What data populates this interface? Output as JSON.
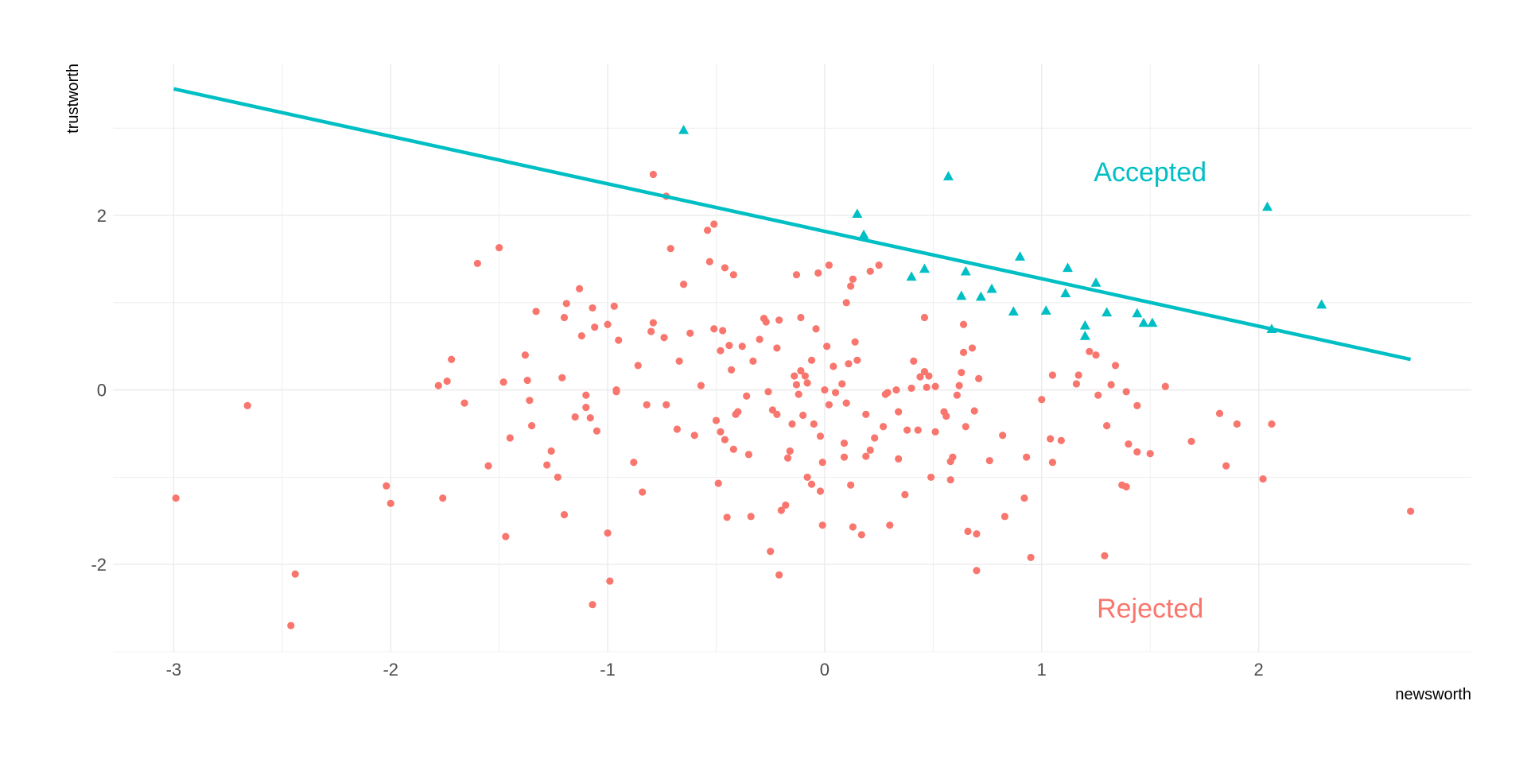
{
  "chart_data": {
    "type": "scatter",
    "title": "",
    "xlabel": "newsworth",
    "ylabel": "trustworth",
    "xlim": [
      -3.28,
      2.98
    ],
    "ylim": [
      -3.0,
      3.74
    ],
    "x_ticks": [
      "-3",
      "-2",
      "-1",
      "0",
      "1",
      "2"
    ],
    "x_tick_values": [
      -3,
      -2,
      -1,
      0,
      1,
      2
    ],
    "y_ticks": [
      "-2",
      "0",
      "2"
    ],
    "y_tick_values": [
      -2,
      0,
      2
    ],
    "grid": true,
    "legend": "none",
    "group_labels": {
      "accepted": {
        "text": "Accepted",
        "x": 1.5,
        "y": 2.5
      },
      "rejected": {
        "text": "Rejected",
        "x": 1.5,
        "y": -2.5
      }
    },
    "colors": {
      "accepted": "#00BFC4",
      "rejected": "#F8766D",
      "grid": "#ebebeb"
    },
    "threshold_line": {
      "x": [
        -3.0,
        2.7
      ],
      "y": [
        3.45,
        0.35
      ]
    },
    "accepted": {
      "shape": "triangle",
      "points": [
        [
          -0.65,
          2.98
        ],
        [
          0.15,
          2.02
        ],
        [
          0.18,
          1.78
        ],
        [
          0.57,
          2.45
        ],
        [
          0.4,
          1.3
        ],
        [
          0.46,
          1.39
        ],
        [
          0.63,
          1.08
        ],
        [
          0.65,
          1.36
        ],
        [
          0.72,
          1.07
        ],
        [
          0.77,
          1.16
        ],
        [
          0.87,
          0.9
        ],
        [
          0.9,
          1.53
        ],
        [
          1.02,
          0.91
        ],
        [
          1.11,
          1.11
        ],
        [
          1.12,
          1.4
        ],
        [
          1.2,
          0.74
        ],
        [
          1.2,
          0.62
        ],
        [
          1.25,
          1.23
        ],
        [
          1.3,
          0.89
        ],
        [
          1.44,
          0.88
        ],
        [
          1.47,
          0.77
        ],
        [
          1.51,
          0.77
        ],
        [
          2.04,
          2.1
        ],
        [
          2.06,
          0.7
        ],
        [
          2.29,
          0.98
        ]
      ]
    },
    "rejected": {
      "shape": "circle",
      "points": [
        [
          -2.99,
          -1.24
        ],
        [
          -2.66,
          -0.18
        ],
        [
          -2.44,
          -2.11
        ],
        [
          -2.46,
          -2.7
        ],
        [
          -2.02,
          -1.1
        ],
        [
          -2.0,
          -1.3
        ],
        [
          -1.78,
          0.05
        ],
        [
          -1.76,
          -1.24
        ],
        [
          -1.74,
          0.1
        ],
        [
          -1.72,
          0.35
        ],
        [
          -1.66,
          -0.15
        ],
        [
          -1.6,
          1.45
        ],
        [
          -1.55,
          -0.87
        ],
        [
          -1.5,
          1.63
        ],
        [
          -1.48,
          0.09
        ],
        [
          -1.47,
          -1.68
        ],
        [
          -1.45,
          -0.55
        ],
        [
          -1.38,
          0.4
        ],
        [
          -1.37,
          0.11
        ],
        [
          -1.36,
          -0.12
        ],
        [
          -1.35,
          -0.41
        ],
        [
          -1.33,
          0.9
        ],
        [
          -1.28,
          -0.86
        ],
        [
          -1.26,
          -0.7
        ],
        [
          -1.23,
          -1.0
        ],
        [
          -1.21,
          0.14
        ],
        [
          -1.2,
          -1.43
        ],
        [
          -1.2,
          0.83
        ],
        [
          -1.19,
          0.99
        ],
        [
          -1.15,
          -0.31
        ],
        [
          -1.13,
          1.16
        ],
        [
          -1.12,
          0.62
        ],
        [
          -1.1,
          -0.06
        ],
        [
          -1.1,
          -0.2
        ],
        [
          -1.07,
          0.94
        ],
        [
          -1.07,
          -2.46
        ],
        [
          -1.06,
          0.72
        ],
        [
          -1.05,
          -0.47
        ],
        [
          -1.08,
          -0.32
        ],
        [
          -1.0,
          0.75
        ],
        [
          -1.0,
          -1.64
        ],
        [
          -0.99,
          -2.19
        ],
        [
          -0.97,
          0.96
        ],
        [
          -0.96,
          0.0
        ],
        [
          -0.96,
          -0.02
        ],
        [
          -0.95,
          0.57
        ],
        [
          -0.88,
          -0.83
        ],
        [
          -0.86,
          0.28
        ],
        [
          -0.84,
          -1.17
        ],
        [
          -0.82,
          -0.17
        ],
        [
          -0.8,
          0.67
        ],
        [
          -0.79,
          2.47
        ],
        [
          -0.79,
          0.77
        ],
        [
          -0.74,
          0.6
        ],
        [
          -0.73,
          -0.17
        ],
        [
          -0.73,
          2.22
        ],
        [
          -0.71,
          1.62
        ],
        [
          -0.68,
          -0.45
        ],
        [
          -0.67,
          0.33
        ],
        [
          -0.65,
          1.21
        ],
        [
          -0.62,
          0.65
        ],
        [
          -0.6,
          -0.52
        ],
        [
          -0.57,
          0.05
        ],
        [
          -0.54,
          1.83
        ],
        [
          -0.53,
          1.47
        ],
        [
          -0.51,
          1.9
        ],
        [
          -0.51,
          0.7
        ],
        [
          -0.5,
          -0.35
        ],
        [
          -0.49,
          -1.07
        ],
        [
          -0.48,
          -0.48
        ],
        [
          -0.48,
          0.45
        ],
        [
          -0.47,
          0.68
        ],
        [
          -0.46,
          1.4
        ],
        [
          -0.46,
          -0.57
        ],
        [
          -0.45,
          -1.46
        ],
        [
          -0.44,
          0.51
        ],
        [
          -0.43,
          0.23
        ],
        [
          -0.42,
          1.32
        ],
        [
          -0.42,
          -0.68
        ],
        [
          -0.41,
          -0.28
        ],
        [
          -0.4,
          -0.25
        ],
        [
          -0.38,
          0.5
        ],
        [
          -0.36,
          -0.07
        ],
        [
          -0.35,
          -0.74
        ],
        [
          -0.34,
          -1.45
        ],
        [
          -0.33,
          0.33
        ],
        [
          -0.3,
          0.58
        ],
        [
          -0.28,
          0.82
        ],
        [
          -0.27,
          0.78
        ],
        [
          -0.26,
          -0.02
        ],
        [
          -0.25,
          -1.85
        ],
        [
          -0.24,
          -0.23
        ],
        [
          -0.22,
          -0.28
        ],
        [
          -0.22,
          0.48
        ],
        [
          -0.21,
          0.8
        ],
        [
          -0.2,
          -1.38
        ],
        [
          -0.21,
          -2.12
        ],
        [
          -0.18,
          -1.32
        ],
        [
          -0.17,
          -0.78
        ],
        [
          -0.16,
          -0.7
        ],
        [
          -0.15,
          -0.39
        ],
        [
          -0.14,
          0.16
        ],
        [
          -0.13,
          0.06
        ],
        [
          -0.13,
          1.32
        ],
        [
          -0.12,
          -0.05
        ],
        [
          -0.11,
          0.22
        ],
        [
          -0.11,
          0.83
        ],
        [
          -0.1,
          -0.29
        ],
        [
          -0.09,
          0.16
        ],
        [
          -0.08,
          0.08
        ],
        [
          -0.08,
          -1.0
        ],
        [
          -0.06,
          -1.08
        ],
        [
          -0.06,
          0.34
        ],
        [
          -0.05,
          -0.39
        ],
        [
          -0.04,
          0.7
        ],
        [
          -0.03,
          1.34
        ],
        [
          -0.02,
          -0.53
        ],
        [
          -0.02,
          -1.16
        ],
        [
          -0.01,
          -0.83
        ],
        [
          -0.01,
          -1.55
        ],
        [
          0.0,
          0.0
        ],
        [
          0.01,
          0.5
        ],
        [
          0.02,
          1.43
        ],
        [
          0.02,
          -0.17
        ],
        [
          0.04,
          0.27
        ],
        [
          0.05,
          -0.03
        ],
        [
          0.08,
          0.07
        ],
        [
          0.09,
          -0.61
        ],
        [
          0.09,
          -0.77
        ],
        [
          0.1,
          -0.15
        ],
        [
          0.1,
          1.0
        ],
        [
          0.11,
          0.3
        ],
        [
          0.12,
          -1.09
        ],
        [
          0.12,
          1.19
        ],
        [
          0.13,
          1.27
        ],
        [
          0.13,
          -1.57
        ],
        [
          0.14,
          0.55
        ],
        [
          0.15,
          0.34
        ],
        [
          0.17,
          -1.66
        ],
        [
          0.19,
          -0.76
        ],
        [
          0.19,
          -0.28
        ],
        [
          0.21,
          -0.69
        ],
        [
          0.21,
          1.36
        ],
        [
          0.23,
          -0.55
        ],
        [
          0.25,
          1.43
        ],
        [
          0.27,
          -0.42
        ],
        [
          0.28,
          -0.05
        ],
        [
          0.29,
          -0.03
        ],
        [
          0.3,
          -1.55
        ],
        [
          0.33,
          0.0
        ],
        [
          0.34,
          -0.25
        ],
        [
          0.34,
          -0.79
        ],
        [
          0.37,
          -1.2
        ],
        [
          0.38,
          -0.46
        ],
        [
          0.4,
          0.02
        ],
        [
          0.41,
          0.33
        ],
        [
          0.43,
          -0.46
        ],
        [
          0.44,
          0.15
        ],
        [
          0.46,
          0.21
        ],
        [
          0.46,
          0.83
        ],
        [
          0.47,
          0.03
        ],
        [
          0.48,
          0.16
        ],
        [
          0.49,
          -1.0
        ],
        [
          0.51,
          0.04
        ],
        [
          0.51,
          -0.48
        ],
        [
          0.55,
          -0.25
        ],
        [
          0.56,
          -0.3
        ],
        [
          0.58,
          -0.82
        ],
        [
          0.58,
          -1.03
        ],
        [
          0.59,
          -0.77
        ],
        [
          0.61,
          -0.06
        ],
        [
          0.62,
          0.05
        ],
        [
          0.63,
          0.2
        ],
        [
          0.64,
          0.43
        ],
        [
          0.64,
          0.75
        ],
        [
          0.65,
          -0.42
        ],
        [
          0.66,
          -1.62
        ],
        [
          0.68,
          0.48
        ],
        [
          0.69,
          -0.24
        ],
        [
          0.7,
          -1.65
        ],
        [
          0.7,
          -2.07
        ],
        [
          0.71,
          0.13
        ],
        [
          0.76,
          -0.81
        ],
        [
          0.82,
          -0.52
        ],
        [
          0.83,
          -1.45
        ],
        [
          0.92,
          -1.24
        ],
        [
          0.93,
          -0.77
        ],
        [
          0.95,
          -1.92
        ],
        [
          1.0,
          -0.11
        ],
        [
          1.04,
          -0.56
        ],
        [
          1.05,
          0.17
        ],
        [
          1.05,
          -0.83
        ],
        [
          1.09,
          -0.58
        ],
        [
          1.16,
          0.07
        ],
        [
          1.17,
          0.17
        ],
        [
          1.22,
          0.44
        ],
        [
          1.25,
          0.4
        ],
        [
          1.26,
          -0.06
        ],
        [
          1.29,
          -1.9
        ],
        [
          1.3,
          -0.41
        ],
        [
          1.32,
          0.06
        ],
        [
          1.34,
          0.28
        ],
        [
          1.37,
          -1.09
        ],
        [
          1.39,
          -0.02
        ],
        [
          1.39,
          -1.11
        ],
        [
          1.4,
          -0.62
        ],
        [
          1.44,
          -0.71
        ],
        [
          1.44,
          -0.18
        ],
        [
          1.5,
          -0.73
        ],
        [
          1.57,
          0.04
        ],
        [
          1.69,
          -0.59
        ],
        [
          1.82,
          -0.27
        ],
        [
          1.85,
          -0.87
        ],
        [
          1.9,
          -0.39
        ],
        [
          2.02,
          -1.02
        ],
        [
          2.06,
          -0.39
        ],
        [
          2.7,
          -1.39
        ]
      ]
    }
  }
}
